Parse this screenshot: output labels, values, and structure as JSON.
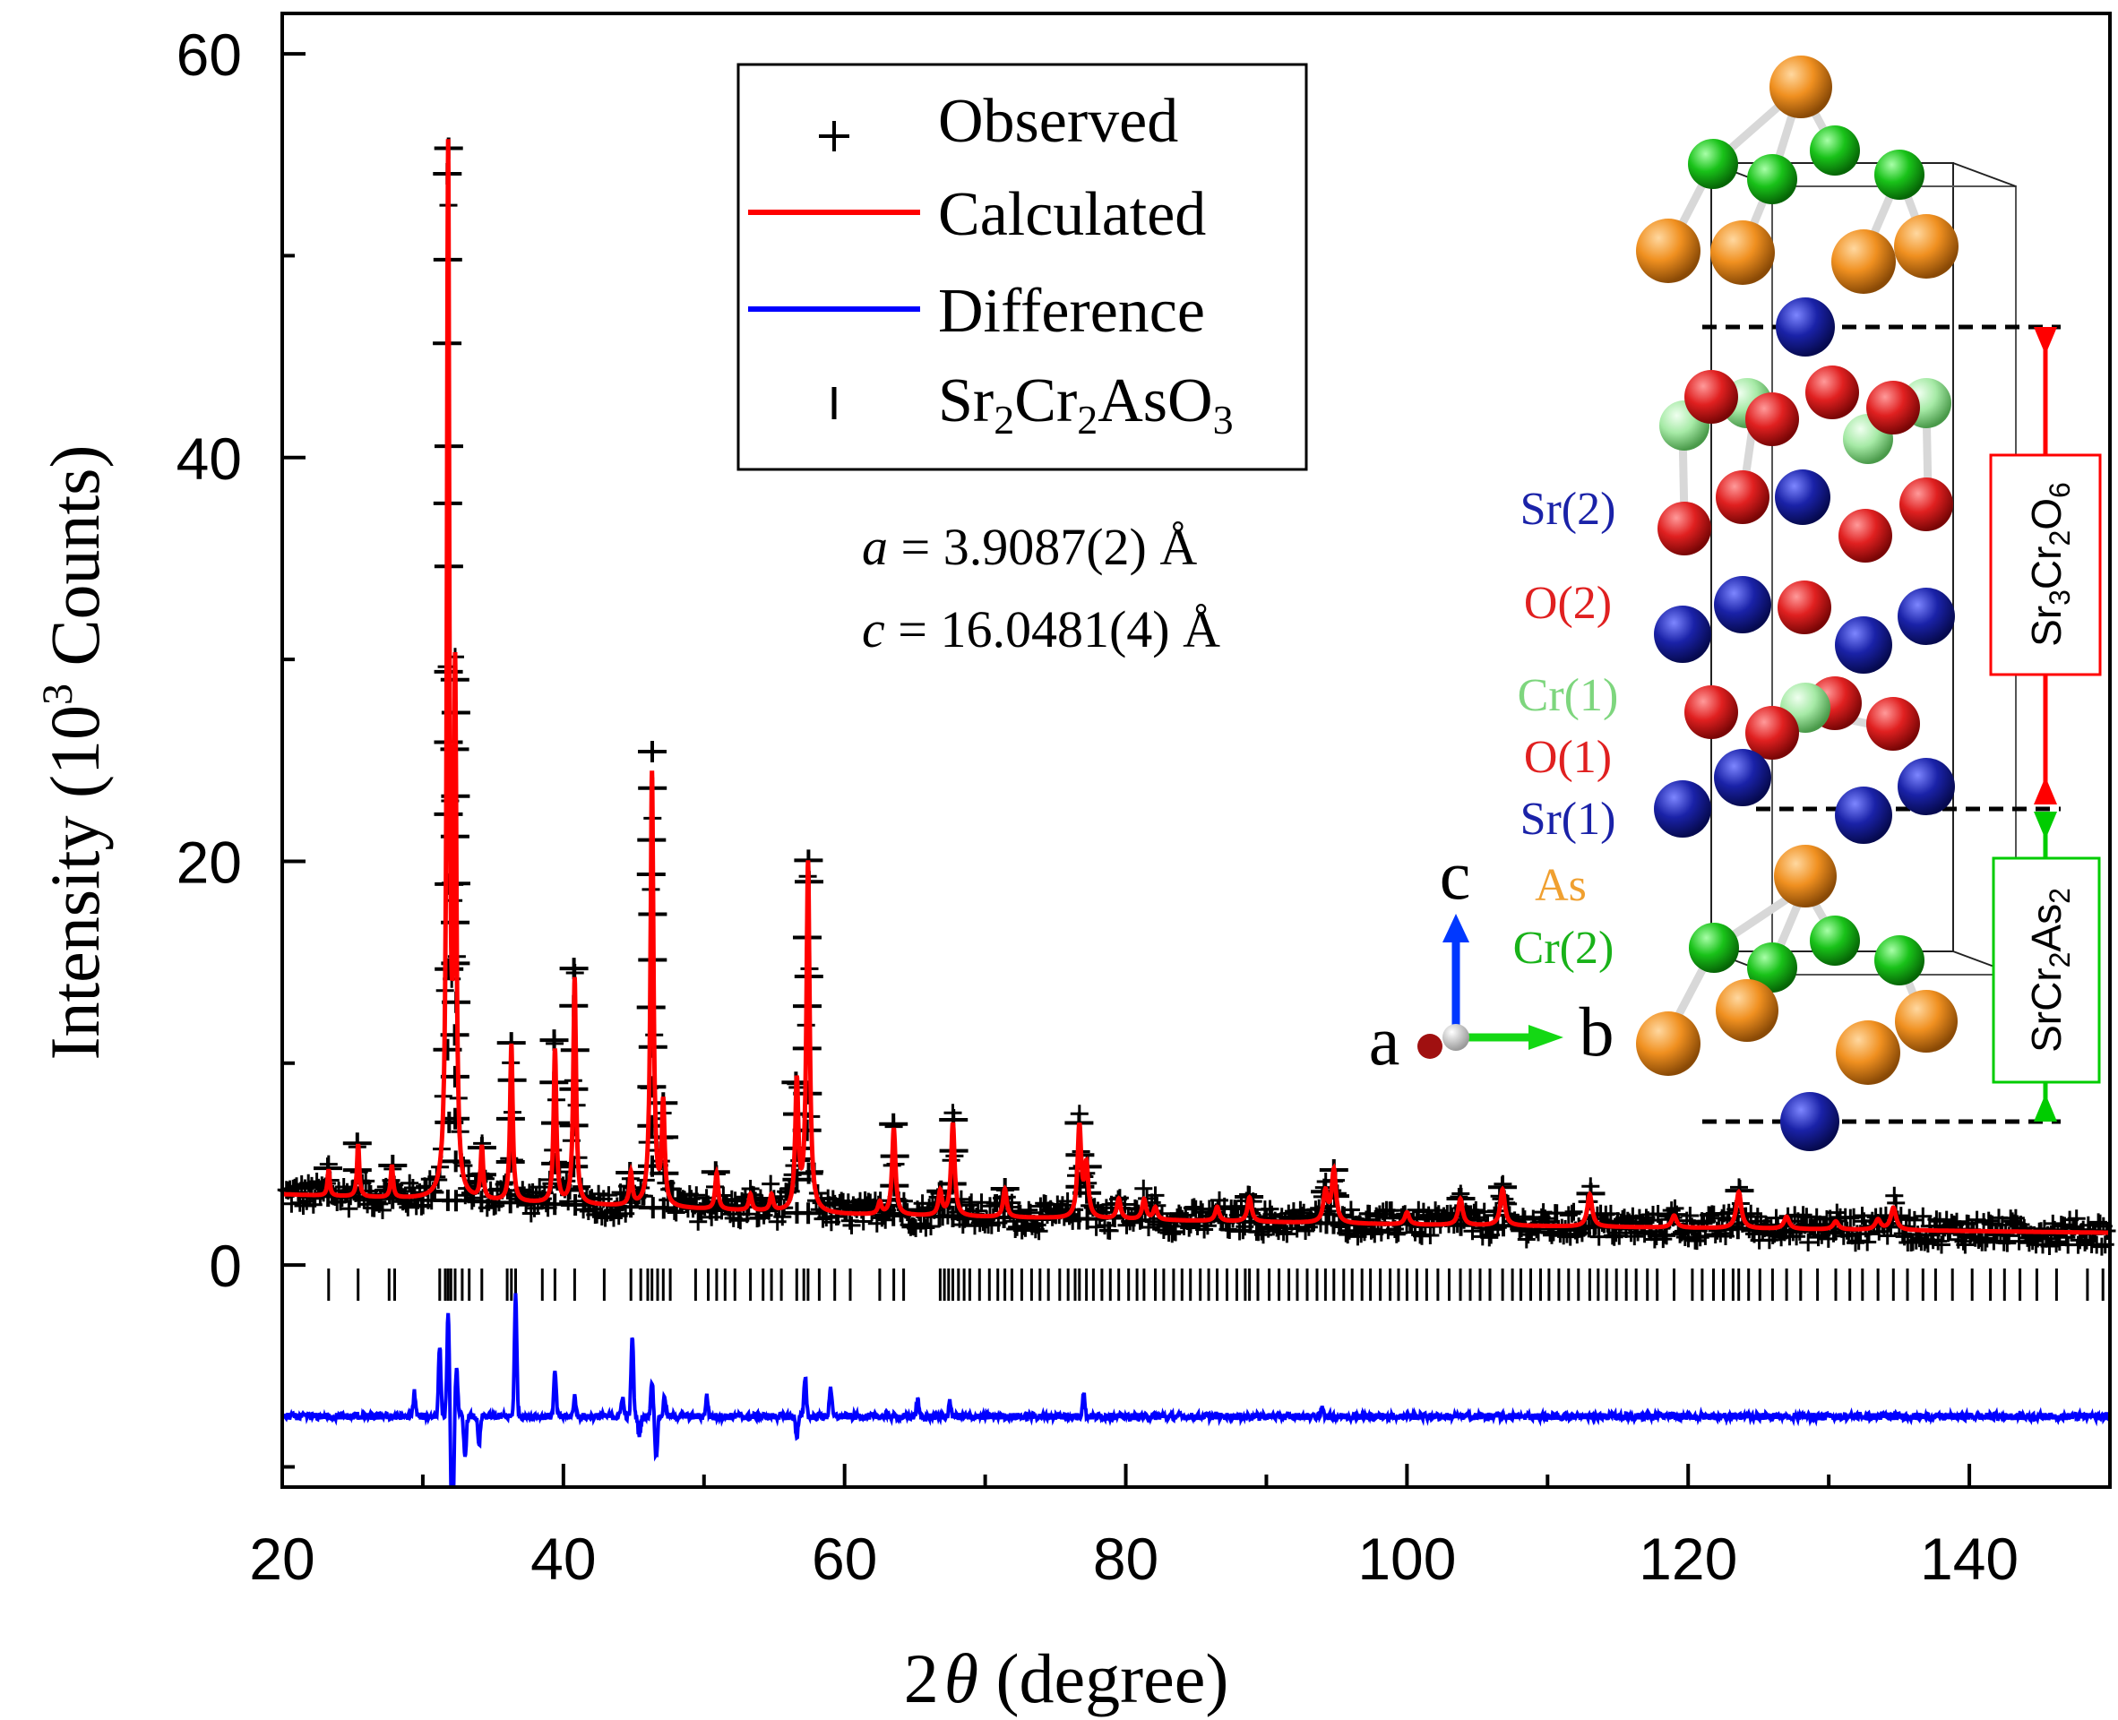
{
  "chart_data": {
    "type": "line",
    "title": "",
    "xlabel": {
      "pre": "2",
      "theta": "θ",
      "post": " (degree)"
    },
    "ylabel": {
      "pre": "Intensity (10",
      "sup": "3",
      "post": " Counts)"
    },
    "xlim": [
      20,
      150
    ],
    "ylim": [
      -11,
      62
    ],
    "xticks": [
      20,
      40,
      60,
      80,
      100,
      120,
      140
    ],
    "yticks": [
      0,
      20,
      40,
      60
    ],
    "xtick_labels": [
      "20",
      "40",
      "60",
      "80",
      "100",
      "120",
      "140"
    ],
    "ytick_labels": [
      "0",
      "20",
      "40",
      "60"
    ],
    "background": {
      "points": [
        [
          20,
          3.5
        ],
        [
          40,
          3.0
        ],
        [
          60,
          2.5
        ],
        [
          100,
          2.0
        ],
        [
          150,
          1.6
        ]
      ]
    },
    "peaks": [
      {
        "x": 23.3,
        "h": 1.3
      },
      {
        "x": 25.4,
        "h": 2.6
      },
      {
        "x": 27.8,
        "h": 1.6
      },
      {
        "x": 31.8,
        "h": 51.5
      },
      {
        "x": 32.3,
        "h": 25.0
      },
      {
        "x": 34.2,
        "h": 2.6
      },
      {
        "x": 36.3,
        "h": 7.8
      },
      {
        "x": 39.4,
        "h": 7.6
      },
      {
        "x": 40.8,
        "h": 11.2
      },
      {
        "x": 44.8,
        "h": 1.6
      },
      {
        "x": 46.3,
        "h": 21.5
      },
      {
        "x": 47.1,
        "h": 5.0
      },
      {
        "x": 50.9,
        "h": 1.8
      },
      {
        "x": 53.3,
        "h": 0.8
      },
      {
        "x": 54.8,
        "h": 0.8
      },
      {
        "x": 56.6,
        "h": 6.3
      },
      {
        "x": 57.4,
        "h": 17.3
      },
      {
        "x": 62.5,
        "h": 0.6
      },
      {
        "x": 63.5,
        "h": 4.3
      },
      {
        "x": 66.8,
        "h": 1.2
      },
      {
        "x": 67.7,
        "h": 4.6
      },
      {
        "x": 71.4,
        "h": 1.4
      },
      {
        "x": 76.7,
        "h": 4.5
      },
      {
        "x": 77.2,
        "h": 2.5
      },
      {
        "x": 79.5,
        "h": 1.0
      },
      {
        "x": 81.3,
        "h": 1.0
      },
      {
        "x": 82.1,
        "h": 0.6
      },
      {
        "x": 86.5,
        "h": 0.7
      },
      {
        "x": 88.8,
        "h": 1.2
      },
      {
        "x": 94.2,
        "h": 1.5
      },
      {
        "x": 94.8,
        "h": 2.6
      },
      {
        "x": 100.0,
        "h": 0.6
      },
      {
        "x": 103.8,
        "h": 1.3
      },
      {
        "x": 106.8,
        "h": 1.8
      },
      {
        "x": 113.0,
        "h": 1.6
      },
      {
        "x": 119.0,
        "h": 0.6
      },
      {
        "x": 123.6,
        "h": 1.8
      },
      {
        "x": 127.0,
        "h": 0.6
      },
      {
        "x": 130.5,
        "h": 0.4
      },
      {
        "x": 133.5,
        "h": 0.5
      },
      {
        "x": 134.6,
        "h": 1.1
      }
    ],
    "diff_offset": -7.5,
    "diff_features": [
      {
        "x": 29.4,
        "a": 1.2
      },
      {
        "x": 31.2,
        "a": 3.5
      },
      {
        "x": 31.8,
        "a": 5.0
      },
      {
        "x": 32.1,
        "a": -8.0
      },
      {
        "x": 32.4,
        "a": 2.5
      },
      {
        "x": 33.0,
        "a": -2.0
      },
      {
        "x": 34.0,
        "a": -1.5
      },
      {
        "x": 36.6,
        "a": 6.0
      },
      {
        "x": 39.4,
        "a": 2.2
      },
      {
        "x": 40.8,
        "a": 1.0
      },
      {
        "x": 44.2,
        "a": 1.0
      },
      {
        "x": 44.9,
        "a": 4.0
      },
      {
        "x": 45.4,
        "a": -1.0
      },
      {
        "x": 46.3,
        "a": 1.8
      },
      {
        "x": 46.6,
        "a": -2.0
      },
      {
        "x": 47.2,
        "a": 1.0
      },
      {
        "x": 50.2,
        "a": 1.0
      },
      {
        "x": 56.6,
        "a": -1.0
      },
      {
        "x": 57.2,
        "a": 2.0
      },
      {
        "x": 59.0,
        "a": 1.5
      },
      {
        "x": 65.2,
        "a": 0.8
      },
      {
        "x": 67.5,
        "a": 0.7
      },
      {
        "x": 77.0,
        "a": 1.2
      },
      {
        "x": 94.0,
        "a": 0.5
      }
    ],
    "reflections": [
      23.3,
      25.4,
      27.6,
      28.0,
      31.2,
      31.6,
      31.8,
      32.0,
      32.3,
      32.8,
      33.3,
      34.2,
      36.0,
      36.3,
      36.6,
      38.5,
      39.4,
      40.8,
      42.9,
      44.8,
      45.5,
      46.0,
      46.3,
      46.7,
      47.1,
      47.6,
      49.4,
      50.3,
      50.9,
      51.5,
      52.2,
      53.3,
      54.2,
      54.8,
      55.5,
      56.6,
      57.1,
      57.4,
      58.2,
      59.3,
      60.4,
      62.5,
      63.5,
      64.2,
      66.8,
      67.1,
      67.4,
      67.7,
      68.1,
      68.5,
      68.9,
      69.6,
      70.3,
      70.9,
      71.4,
      71.9,
      72.6,
      73.3,
      73.9,
      74.5,
      75.3,
      75.9,
      76.4,
      76.7,
      77.2,
      77.7,
      78.3,
      78.9,
      79.5,
      80.2,
      80.8,
      81.3,
      82.1,
      82.7,
      83.4,
      84.0,
      84.6,
      85.3,
      85.9,
      86.5,
      87.2,
      87.9,
      88.5,
      88.8,
      89.4,
      90.2,
      90.9,
      91.6,
      92.2,
      92.9,
      93.6,
      94.2,
      94.8,
      95.5,
      96.1,
      96.8,
      97.4,
      98.1,
      98.8,
      99.4,
      100.0,
      100.7,
      101.4,
      102.2,
      103.0,
      103.8,
      104.5,
      105.2,
      105.9,
      106.8,
      107.5,
      108.1,
      108.8,
      109.5,
      110.1,
      110.8,
      111.5,
      112.2,
      113.0,
      113.6,
      114.2,
      114.9,
      115.6,
      116.3,
      117.1,
      117.8,
      119.0,
      120.3,
      121.0,
      121.8,
      122.5,
      123.2,
      123.6,
      124.3,
      125.1,
      126.0,
      127.0,
      128.0,
      129.2,
      130.5,
      131.5,
      132.4,
      133.5,
      134.6,
      135.6,
      136.7,
      137.6,
      138.8,
      140.2,
      141.5,
      142.5,
      143.6,
      144.8,
      146.2,
      148.4,
      149.5
    ],
    "series": [
      {
        "name": "Observed",
        "color": "#000000",
        "marker": "+"
      },
      {
        "name": "Calculated",
        "color": "#ff0000",
        "marker": "line"
      },
      {
        "name": "Difference",
        "color": "#0000ff",
        "marker": "line"
      },
      {
        "name": "Sr2Cr2AsO3",
        "color": "#000000",
        "marker": "|"
      }
    ],
    "legend": {
      "placement": "top-center",
      "items": [
        {
          "text": "Observed"
        },
        {
          "text": "Calculated"
        },
        {
          "text": "Difference"
        },
        {
          "parts": [
            {
              "t": "Sr"
            },
            {
              "t": "2",
              "sub": true
            },
            {
              "t": "Cr"
            },
            {
              "t": "2",
              "sub": true
            },
            {
              "t": "AsO"
            },
            {
              "t": "3",
              "sub": true
            }
          ]
        }
      ]
    },
    "annotations": [
      {
        "var": "a",
        "text": " = 3.9087(2) Å"
      },
      {
        "var": "c",
        "text": " = 16.0481(4) Å"
      }
    ]
  },
  "structure_inset": {
    "atom_labels": [
      {
        "text": "Sr(2)",
        "color": "#1a22a8"
      },
      {
        "text": "O(2)",
        "color": "#e02020"
      },
      {
        "text": "Cr(1)",
        "color": "#7ed67e"
      },
      {
        "text": "O(1)",
        "color": "#e02020"
      },
      {
        "text": "Sr(1)",
        "color": "#1a22a8"
      },
      {
        "text": "As",
        "color": "#f0a030"
      },
      {
        "text": "Cr(2)",
        "color": "#19b219"
      }
    ],
    "axis_labels": {
      "a": "a",
      "b": "b",
      "c": "c"
    },
    "block_labels": [
      {
        "parts": [
          {
            "t": "Sr"
          },
          {
            "t": "3",
            "sub": true
          },
          {
            "t": "Cr"
          },
          {
            "t": "2",
            "sub": true
          },
          {
            "t": "O"
          },
          {
            "t": "6",
            "sub": true
          }
        ],
        "color": "#ff0000"
      },
      {
        "parts": [
          {
            "t": "SrCr"
          },
          {
            "t": "2",
            "sub": true
          },
          {
            "t": "As"
          },
          {
            "t": "2",
            "sub": true
          }
        ],
        "color": "#00cc00"
      }
    ],
    "colors": {
      "Sr": "#1a22a8",
      "O": "#e02020",
      "Cr1": "#a6eaa6",
      "Cr2": "#19c219",
      "As": "#f09020"
    }
  }
}
